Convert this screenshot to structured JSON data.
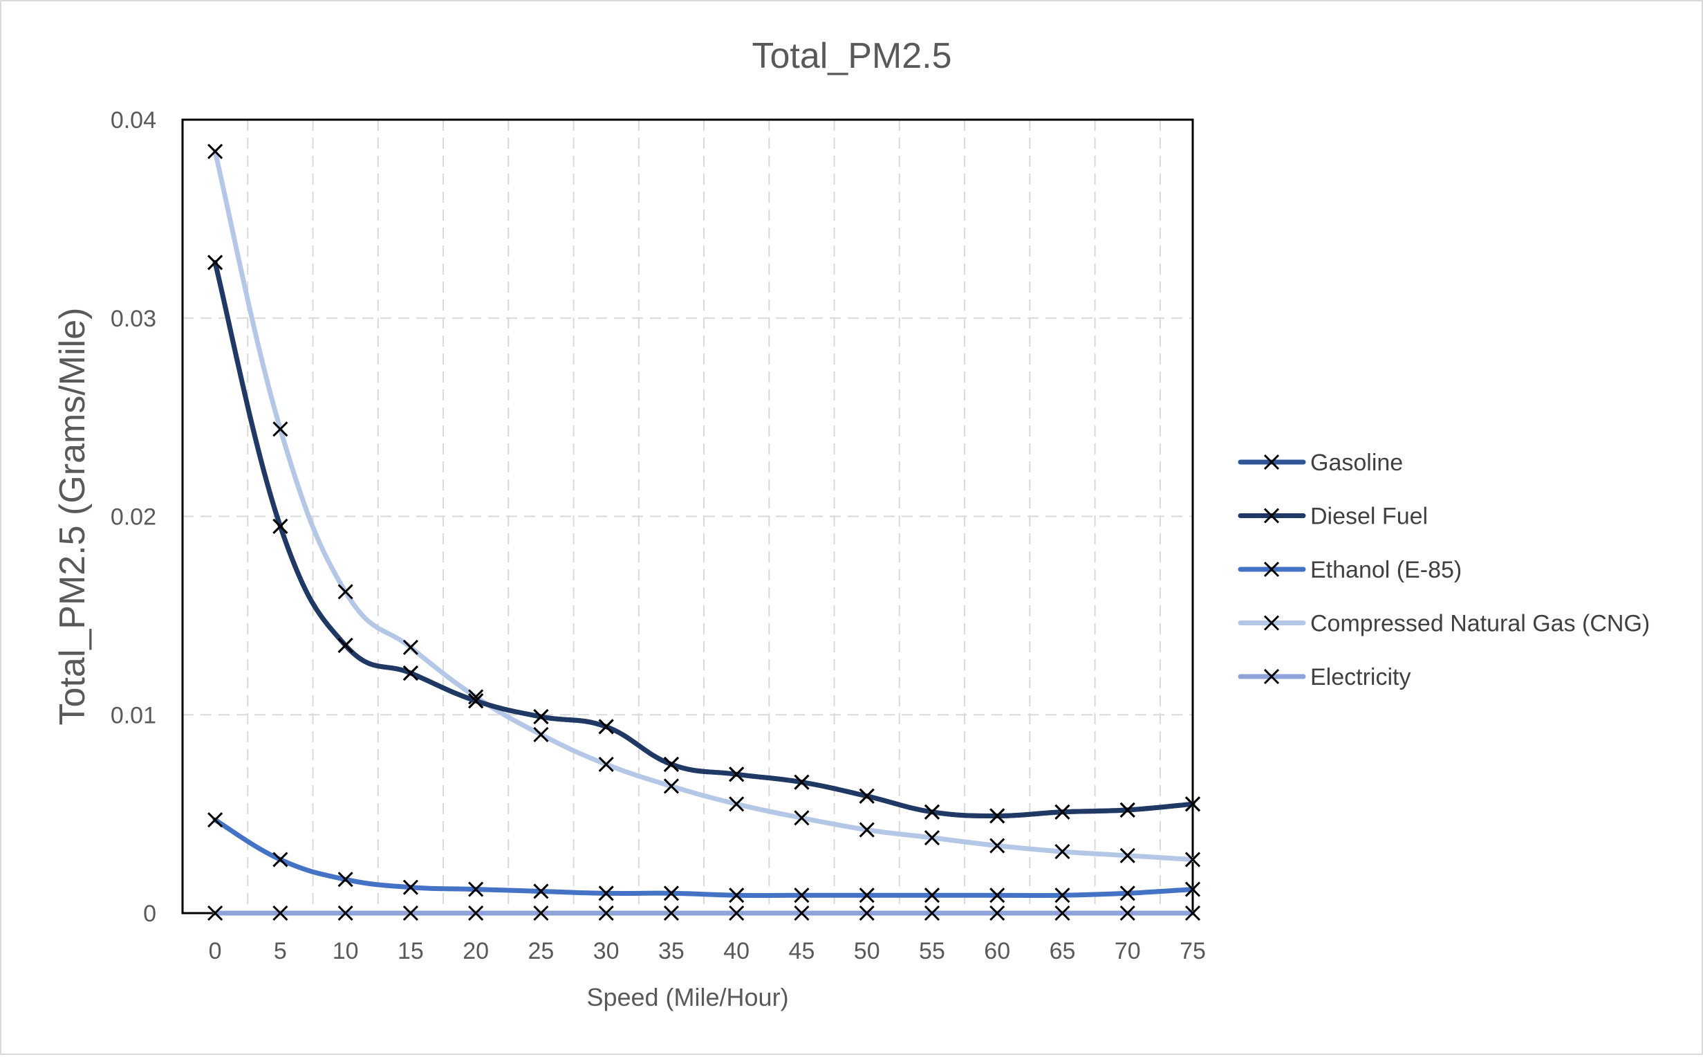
{
  "chart_data": {
    "type": "line",
    "title": "Total_PM2.5",
    "xlabel": "Speed (Mile/Hour)",
    "ylabel": "Total_PM2.5  (Grams/Mile)",
    "ylim": [
      0,
      0.04
    ],
    "yticks": [
      "0",
      "0.01",
      "0.02",
      "0.03",
      "0.04"
    ],
    "x": [
      0,
      5,
      10,
      15,
      20,
      25,
      30,
      35,
      40,
      45,
      50,
      55,
      60,
      65,
      70,
      75
    ],
    "xtick_labels": [
      "0",
      "5",
      "10",
      "15",
      "20",
      "25",
      "30",
      "35",
      "40",
      "45",
      "50",
      "55",
      "60",
      "65",
      "70",
      "75"
    ],
    "grid": true,
    "legend_position": "right",
    "marker": "x",
    "series": [
      {
        "name": "Gasoline",
        "color": "#2f5597",
        "values": [
          0.0328,
          0.0195,
          0.0135,
          0.0121,
          0.0107,
          0.0099,
          0.0094,
          0.0075,
          0.007,
          0.0066,
          0.0059,
          0.0051,
          0.0049,
          0.0051,
          0.0052,
          0.0055
        ]
      },
      {
        "name": "Diesel Fuel",
        "color": "#203864",
        "values": [
          0.0328,
          0.0195,
          0.0135,
          0.0121,
          0.0107,
          0.0099,
          0.0094,
          0.0075,
          0.007,
          0.0066,
          0.0059,
          0.0051,
          0.0049,
          0.0051,
          0.0052,
          0.0055
        ]
      },
      {
        "name": "Ethanol (E-85)",
        "color": "#4472c4",
        "values": [
          0.0047,
          0.0027,
          0.0017,
          0.0013,
          0.0012,
          0.0011,
          0.001,
          0.001,
          0.0009,
          0.0009,
          0.0009,
          0.0009,
          0.0009,
          0.0009,
          0.001,
          0.0012
        ]
      },
      {
        "name": "Compressed Natural Gas (CNG)",
        "color": "#b4c7e7",
        "values": [
          0.0384,
          0.0244,
          0.0162,
          0.0134,
          0.0109,
          0.009,
          0.0075,
          0.0064,
          0.0055,
          0.0048,
          0.0042,
          0.0038,
          0.0034,
          0.0031,
          0.0029,
          0.0027
        ]
      },
      {
        "name": "Electricity",
        "color": "#8fa3d8",
        "values": [
          0,
          0,
          0,
          0,
          0,
          0,
          0,
          0,
          0,
          0,
          0,
          0,
          0,
          0,
          0,
          0
        ]
      }
    ]
  }
}
